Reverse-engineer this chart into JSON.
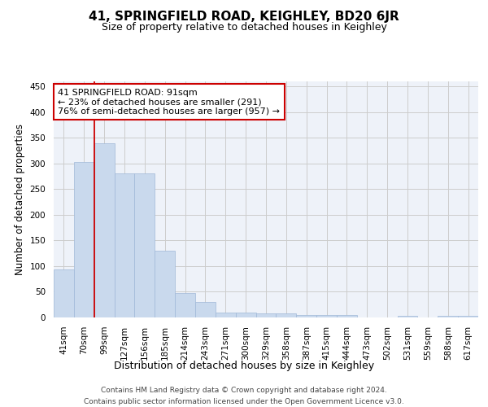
{
  "title": "41, SPRINGFIELD ROAD, KEIGHLEY, BD20 6JR",
  "subtitle": "Size of property relative to detached houses in Keighley",
  "xlabel": "Distribution of detached houses by size in Keighley",
  "ylabel": "Number of detached properties",
  "categories": [
    "41sqm",
    "70sqm",
    "99sqm",
    "127sqm",
    "156sqm",
    "185sqm",
    "214sqm",
    "243sqm",
    "271sqm",
    "300sqm",
    "329sqm",
    "358sqm",
    "387sqm",
    "415sqm",
    "444sqm",
    "473sqm",
    "502sqm",
    "531sqm",
    "559sqm",
    "588sqm",
    "617sqm"
  ],
  "values": [
    93,
    303,
    340,
    280,
    280,
    130,
    47,
    30,
    10,
    10,
    8,
    8,
    5,
    4,
    4,
    0,
    0,
    3,
    0,
    3,
    3
  ],
  "bar_color": "#c9d9ed",
  "bar_edge_color": "#a0b8d8",
  "vline_color": "#cc0000",
  "annotation_text": "41 SPRINGFIELD ROAD: 91sqm\n← 23% of detached houses are smaller (291)\n76% of semi-detached houses are larger (957) →",
  "annotation_box_color": "white",
  "annotation_box_edge": "#cc0000",
  "ylim": [
    0,
    460
  ],
  "yticks": [
    0,
    50,
    100,
    150,
    200,
    250,
    300,
    350,
    400,
    450
  ],
  "grid_color": "#cccccc",
  "background_color": "#eef2f9",
  "footer_text": "Contains HM Land Registry data © Crown copyright and database right 2024.\nContains public sector information licensed under the Open Government Licence v3.0.",
  "title_fontsize": 11,
  "subtitle_fontsize": 9,
  "xlabel_fontsize": 9,
  "ylabel_fontsize": 8.5,
  "tick_fontsize": 7.5,
  "annotation_fontsize": 8,
  "footer_fontsize": 6.5
}
